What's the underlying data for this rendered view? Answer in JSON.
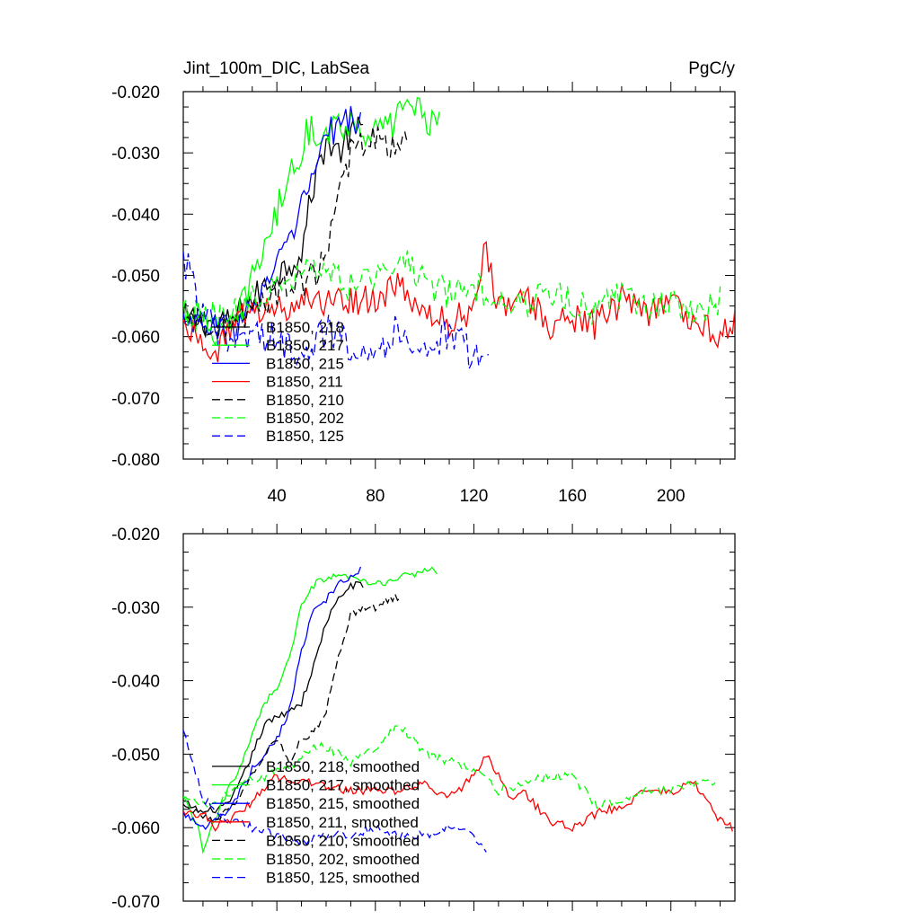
{
  "chart_data": [
    {
      "type": "line",
      "title": "Jint_100m_DIC, LabSea",
      "units": "PgC/y",
      "xlim": [
        2,
        226
      ],
      "ylim": [
        -0.08,
        -0.02
      ],
      "y_ticks": [
        "-0.020",
        "-0.030",
        "-0.040",
        "-0.050",
        "-0.060",
        "-0.070",
        "-0.080"
      ],
      "y_tick_values": [
        -0.02,
        -0.03,
        -0.04,
        -0.05,
        -0.06,
        -0.07,
        -0.08
      ],
      "x_ticks": [
        "40",
        "80",
        "120",
        "160",
        "200"
      ],
      "x_tick_values": [
        40,
        80,
        120,
        160,
        200
      ],
      "series": [
        {
          "name": "B1850, 218",
          "color": "#000000",
          "dash": false,
          "noise": 0.0026,
          "anchors": [
            [
              2,
              -0.057
            ],
            [
              20,
              -0.058
            ],
            [
              30,
              -0.054
            ],
            [
              40,
              -0.05
            ],
            [
              50,
              -0.046
            ],
            [
              55,
              -0.035
            ],
            [
              60,
              -0.028
            ],
            [
              65,
              -0.03
            ],
            [
              70,
              -0.027
            ],
            [
              75,
              -0.026
            ]
          ]
        },
        {
          "name": "B1850, 217",
          "color": "#00ff00",
          "dash": false,
          "noise": 0.0028,
          "anchors": [
            [
              2,
              -0.055
            ],
            [
              10,
              -0.058
            ],
            [
              20,
              -0.06
            ],
            [
              25,
              -0.056
            ],
            [
              32,
              -0.048
            ],
            [
              38,
              -0.042
            ],
            [
              45,
              -0.034
            ],
            [
              52,
              -0.027
            ],
            [
              60,
              -0.026
            ],
            [
              70,
              -0.025
            ],
            [
              80,
              -0.027
            ],
            [
              88,
              -0.025
            ],
            [
              92,
              -0.021
            ],
            [
              100,
              -0.024
            ],
            [
              106,
              -0.025
            ]
          ]
        },
        {
          "name": "B1850, 215",
          "color": "#0000ff",
          "dash": false,
          "noise": 0.0026,
          "anchors": [
            [
              2,
              -0.057
            ],
            [
              15,
              -0.059
            ],
            [
              25,
              -0.058
            ],
            [
              35,
              -0.052
            ],
            [
              45,
              -0.045
            ],
            [
              55,
              -0.033
            ],
            [
              60,
              -0.027
            ],
            [
              65,
              -0.026
            ],
            [
              70,
              -0.024
            ],
            [
              74,
              -0.025
            ]
          ]
        },
        {
          "name": "B1850, 211",
          "color": "#ff0000",
          "dash": false,
          "noise": 0.0026,
          "anchors": [
            [
              2,
              -0.058
            ],
            [
              10,
              -0.06
            ],
            [
              15,
              -0.064
            ],
            [
              20,
              -0.058
            ],
            [
              40,
              -0.055
            ],
            [
              60,
              -0.054
            ],
            [
              80,
              -0.054
            ],
            [
              90,
              -0.052
            ],
            [
              100,
              -0.056
            ],
            [
              110,
              -0.058
            ],
            [
              120,
              -0.055
            ],
            [
              125,
              -0.045
            ],
            [
              130,
              -0.056
            ],
            [
              140,
              -0.053
            ],
            [
              150,
              -0.058
            ],
            [
              160,
              -0.057
            ],
            [
              170,
              -0.058
            ],
            [
              180,
              -0.054
            ],
            [
              190,
              -0.056
            ],
            [
              200,
              -0.055
            ],
            [
              210,
              -0.057
            ],
            [
              220,
              -0.06
            ],
            [
              226,
              -0.057
            ]
          ]
        },
        {
          "name": "B1850, 210",
          "color": "#000000",
          "dash": true,
          "noise": 0.0026,
          "anchors": [
            [
              2,
              -0.056
            ],
            [
              20,
              -0.059
            ],
            [
              30,
              -0.055
            ],
            [
              45,
              -0.052
            ],
            [
              55,
              -0.05
            ],
            [
              60,
              -0.046
            ],
            [
              65,
              -0.038
            ],
            [
              70,
              -0.03
            ],
            [
              80,
              -0.028
            ],
            [
              90,
              -0.029
            ],
            [
              93,
              -0.027
            ]
          ]
        },
        {
          "name": "B1850, 202",
          "color": "#00ff00",
          "dash": true,
          "noise": 0.0026,
          "anchors": [
            [
              2,
              -0.056
            ],
            [
              20,
              -0.057
            ],
            [
              30,
              -0.054
            ],
            [
              40,
              -0.052
            ],
            [
              50,
              -0.05
            ],
            [
              60,
              -0.049
            ],
            [
              70,
              -0.052
            ],
            [
              80,
              -0.05
            ],
            [
              90,
              -0.046
            ],
            [
              100,
              -0.051
            ],
            [
              110,
              -0.053
            ],
            [
              120,
              -0.052
            ],
            [
              130,
              -0.053
            ],
            [
              140,
              -0.055
            ],
            [
              150,
              -0.053
            ],
            [
              160,
              -0.054
            ],
            [
              170,
              -0.056
            ],
            [
              180,
              -0.053
            ],
            [
              190,
              -0.055
            ],
            [
              200,
              -0.054
            ],
            [
              210,
              -0.056
            ],
            [
              220,
              -0.054
            ]
          ]
        },
        {
          "name": "B1850, 125",
          "color": "#0000ff",
          "dash": true,
          "noise": 0.003,
          "anchors": [
            [
              2,
              -0.047
            ],
            [
              5,
              -0.05
            ],
            [
              10,
              -0.057
            ],
            [
              20,
              -0.061
            ],
            [
              30,
              -0.059
            ],
            [
              40,
              -0.061
            ],
            [
              50,
              -0.062
            ],
            [
              60,
              -0.059
            ],
            [
              70,
              -0.061
            ],
            [
              80,
              -0.062
            ],
            [
              90,
              -0.059
            ],
            [
              100,
              -0.062
            ],
            [
              110,
              -0.06
            ],
            [
              120,
              -0.063
            ],
            [
              126,
              -0.064
            ]
          ]
        }
      ]
    },
    {
      "type": "line",
      "xlim": [
        2,
        226
      ],
      "ylim": [
        -0.07,
        -0.02
      ],
      "y_ticks": [
        "-0.020",
        "-0.030",
        "-0.040",
        "-0.050",
        "-0.060",
        "-0.070"
      ],
      "y_tick_values": [
        -0.02,
        -0.03,
        -0.04,
        -0.05,
        -0.06,
        -0.07
      ],
      "x_ticks": [],
      "x_tick_values": [
        40,
        80,
        120,
        160,
        200
      ],
      "series": [
        {
          "name": "B1850, 218, smoothed",
          "color": "#000000",
          "dash": false,
          "noise": 0.0005,
          "anchors": [
            [
              2,
              -0.0565
            ],
            [
              10,
              -0.058
            ],
            [
              20,
              -0.057
            ],
            [
              25,
              -0.054
            ],
            [
              30,
              -0.05
            ],
            [
              35,
              -0.046
            ],
            [
              40,
              -0.045
            ],
            [
              45,
              -0.044
            ],
            [
              50,
              -0.043
            ],
            [
              55,
              -0.038
            ],
            [
              60,
              -0.032
            ],
            [
              65,
              -0.029
            ],
            [
              70,
              -0.027
            ],
            [
              75,
              -0.027
            ]
          ]
        },
        {
          "name": "B1850, 217, smoothed",
          "color": "#00ff00",
          "dash": false,
          "noise": 0.0005,
          "anchors": [
            [
              2,
              -0.056
            ],
            [
              8,
              -0.06
            ],
            [
              10,
              -0.063
            ],
            [
              15,
              -0.059
            ],
            [
              20,
              -0.055
            ],
            [
              25,
              -0.052
            ],
            [
              30,
              -0.047
            ],
            [
              35,
              -0.043
            ],
            [
              40,
              -0.041
            ],
            [
              45,
              -0.037
            ],
            [
              50,
              -0.03
            ],
            [
              55,
              -0.027
            ],
            [
              60,
              -0.026
            ],
            [
              70,
              -0.026
            ],
            [
              80,
              -0.027
            ],
            [
              90,
              -0.026
            ],
            [
              100,
              -0.025
            ],
            [
              105,
              -0.025
            ]
          ]
        },
        {
          "name": "B1850, 215, smoothed",
          "color": "#0000ff",
          "dash": false,
          "noise": 0.0005,
          "anchors": [
            [
              2,
              -0.058
            ],
            [
              10,
              -0.06
            ],
            [
              20,
              -0.058
            ],
            [
              30,
              -0.052
            ],
            [
              40,
              -0.048
            ],
            [
              45,
              -0.044
            ],
            [
              50,
              -0.036
            ],
            [
              55,
              -0.03
            ],
            [
              60,
              -0.029
            ],
            [
              65,
              -0.027
            ],
            [
              70,
              -0.026
            ],
            [
              74,
              -0.025
            ]
          ]
        },
        {
          "name": "B1850, 211, smoothed",
          "color": "#ff0000",
          "dash": false,
          "noise": 0.0006,
          "anchors": [
            [
              2,
              -0.058
            ],
            [
              10,
              -0.058
            ],
            [
              15,
              -0.06
            ],
            [
              25,
              -0.058
            ],
            [
              40,
              -0.053
            ],
            [
              55,
              -0.054
            ],
            [
              70,
              -0.055
            ],
            [
              90,
              -0.055
            ],
            [
              100,
              -0.054
            ],
            [
              110,
              -0.056
            ],
            [
              120,
              -0.053
            ],
            [
              125,
              -0.05
            ],
            [
              130,
              -0.053
            ],
            [
              135,
              -0.056
            ],
            [
              140,
              -0.055
            ],
            [
              150,
              -0.059
            ],
            [
              160,
              -0.06
            ],
            [
              170,
              -0.058
            ],
            [
              180,
              -0.057
            ],
            [
              190,
              -0.055
            ],
            [
              200,
              -0.055
            ],
            [
              210,
              -0.054
            ],
            [
              220,
              -0.059
            ],
            [
              225,
              -0.06
            ]
          ]
        },
        {
          "name": "B1850, 210, smoothed",
          "color": "#000000",
          "dash": true,
          "noise": 0.0005,
          "anchors": [
            [
              2,
              -0.057
            ],
            [
              15,
              -0.059
            ],
            [
              25,
              -0.056
            ],
            [
              35,
              -0.05
            ],
            [
              40,
              -0.048
            ],
            [
              45,
              -0.051
            ],
            [
              50,
              -0.048
            ],
            [
              55,
              -0.047
            ],
            [
              60,
              -0.044
            ],
            [
              65,
              -0.037
            ],
            [
              70,
              -0.031
            ],
            [
              75,
              -0.03
            ],
            [
              80,
              -0.03
            ],
            [
              85,
              -0.029
            ],
            [
              90,
              -0.0285
            ]
          ]
        },
        {
          "name": "B1850, 202, smoothed",
          "color": "#00ff00",
          "dash": true,
          "noise": 0.0006,
          "anchors": [
            [
              2,
              -0.056
            ],
            [
              15,
              -0.057
            ],
            [
              25,
              -0.054
            ],
            [
              35,
              -0.053
            ],
            [
              45,
              -0.052
            ],
            [
              55,
              -0.049
            ],
            [
              60,
              -0.049
            ],
            [
              70,
              -0.051
            ],
            [
              80,
              -0.049
            ],
            [
              90,
              -0.046
            ],
            [
              100,
              -0.05
            ],
            [
              110,
              -0.051
            ],
            [
              120,
              -0.052
            ],
            [
              130,
              -0.055
            ],
            [
              140,
              -0.054
            ],
            [
              150,
              -0.053
            ],
            [
              160,
              -0.053
            ],
            [
              170,
              -0.057
            ],
            [
              180,
              -0.056
            ],
            [
              190,
              -0.055
            ],
            [
              200,
              -0.055
            ],
            [
              210,
              -0.054
            ],
            [
              218,
              -0.054
            ]
          ]
        },
        {
          "name": "B1850, 125, smoothed",
          "color": "#0000ff",
          "dash": true,
          "noise": 0.0006,
          "anchors": [
            [
              2,
              -0.047
            ],
            [
              5,
              -0.05
            ],
            [
              10,
              -0.056
            ],
            [
              20,
              -0.059
            ],
            [
              30,
              -0.06
            ],
            [
              40,
              -0.061
            ],
            [
              50,
              -0.062
            ],
            [
              60,
              -0.061
            ],
            [
              70,
              -0.061
            ],
            [
              80,
              -0.06
            ],
            [
              90,
              -0.061
            ],
            [
              100,
              -0.061
            ],
            [
              110,
              -0.06
            ],
            [
              120,
              -0.061
            ],
            [
              125,
              -0.063
            ]
          ]
        }
      ]
    }
  ]
}
